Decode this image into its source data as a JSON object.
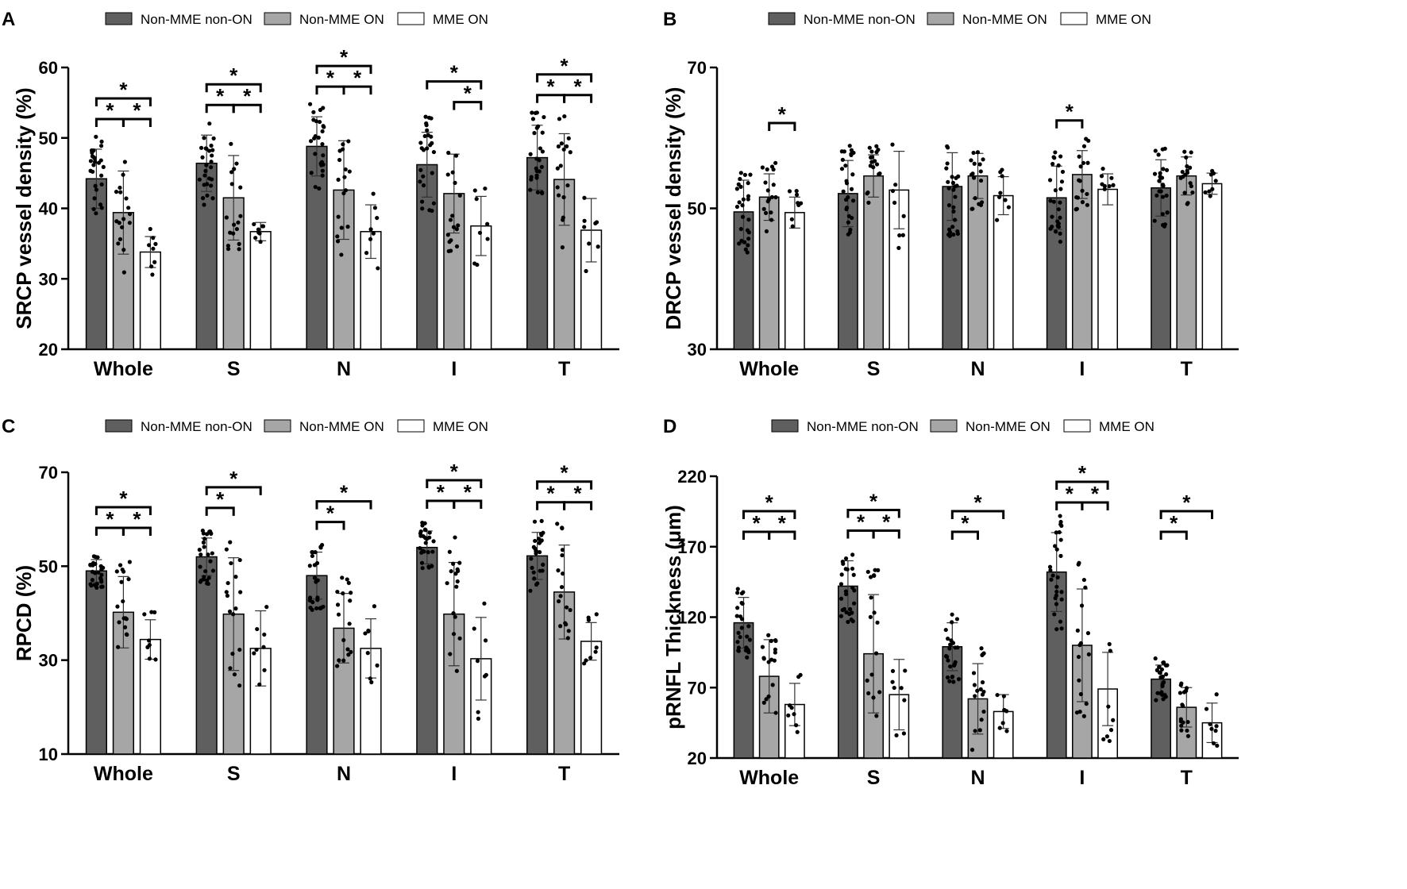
{
  "colors": {
    "dark": "#5f5f5f",
    "gray": "#a6a6a6",
    "white": "#ffffff"
  },
  "legend": [
    "Non-MME non-ON",
    "Non-MME ON",
    "MME ON"
  ],
  "chart_data": [
    {
      "panel": "A",
      "type": "bar",
      "ylabel": "SRCP vessel density (%)",
      "ylim": [
        20,
        60
      ],
      "yticks": [
        20,
        30,
        40,
        50,
        60
      ],
      "categories": [
        "Whole",
        "S",
        "N",
        "I",
        "T"
      ],
      "series": [
        {
          "name": "Non-MME non-ON",
          "values": [
            44.2,
            46.4,
            48.8,
            46.2,
            47.2
          ],
          "sd": [
            4.2,
            4.0,
            4.2,
            4.6,
            4.6
          ]
        },
        {
          "name": "Non-MME ON",
          "values": [
            39.4,
            41.5,
            42.6,
            42.1,
            44.1
          ],
          "sd": [
            5.9,
            6.0,
            7.0,
            5.6,
            6.5
          ]
        },
        {
          "name": "MME ON",
          "values": [
            33.8,
            36.7,
            36.7,
            37.5,
            36.9
          ],
          "sd": [
            2.2,
            1.3,
            3.8,
            4.2,
            4.5
          ]
        }
      ],
      "significance": [
        {
          "category": "Whole",
          "pairs": [
            [
              0,
              1
            ],
            [
              1,
              2
            ],
            [
              0,
              2
            ]
          ],
          "label": "*"
        },
        {
          "category": "S",
          "pairs": [
            [
              0,
              1
            ],
            [
              1,
              2
            ],
            [
              0,
              2
            ]
          ],
          "label": "*"
        },
        {
          "category": "N",
          "pairs": [
            [
              0,
              1
            ],
            [
              1,
              2
            ],
            [
              0,
              2
            ]
          ],
          "label": "*"
        },
        {
          "category": "I",
          "pairs": [
            [
              1,
              2
            ],
            [
              0,
              2
            ]
          ],
          "label": "*"
        },
        {
          "category": "T",
          "pairs": [
            [
              0,
              1
            ],
            [
              1,
              2
            ],
            [
              0,
              2
            ]
          ],
          "label": "*"
        }
      ]
    },
    {
      "panel": "B",
      "type": "bar",
      "ylabel": "DRCP vessel density (%)",
      "ylim": [
        30,
        70
      ],
      "yticks": [
        30,
        50,
        70
      ],
      "categories": [
        "Whole",
        "S",
        "N",
        "I",
        "T"
      ],
      "series": [
        {
          "name": "Non-MME non-ON",
          "values": [
            49.5,
            52.1,
            53.1,
            51.5,
            52.9
          ],
          "sd": [
            4.5,
            4.7,
            4.8,
            4.5,
            4.0
          ]
        },
        {
          "name": "Non-MME ON",
          "values": [
            51.6,
            54.6,
            54.6,
            54.8,
            54.6
          ],
          "sd": [
            3.3,
            3.0,
            3.2,
            3.4,
            2.7
          ]
        },
        {
          "name": "MME ON",
          "values": [
            49.4,
            52.6,
            51.8,
            52.7,
            53.5
          ],
          "sd": [
            2.2,
            5.5,
            2.7,
            2.2,
            1.5
          ]
        }
      ],
      "significance": [
        {
          "category": "Whole",
          "pairs": [
            [
              1,
              2
            ]
          ],
          "label": "*"
        },
        {
          "category": "I",
          "pairs": [
            [
              0,
              1
            ]
          ],
          "label": "*"
        }
      ]
    },
    {
      "panel": "C",
      "type": "bar",
      "ylabel": "RPCD (%)",
      "ylim": [
        10,
        70
      ],
      "yticks": [
        10,
        30,
        50,
        70
      ],
      "categories": [
        "Whole",
        "S",
        "N",
        "I",
        "T"
      ],
      "series": [
        {
          "name": "Non-MME non-ON",
          "values": [
            49.0,
            52.0,
            48.0,
            54.0,
            52.2
          ],
          "sd": [
            2.4,
            4.0,
            5.0,
            3.5,
            5.0
          ]
        },
        {
          "name": "Non-MME ON",
          "values": [
            40.2,
            39.8,
            36.8,
            39.8,
            44.5
          ],
          "sd": [
            7.6,
            12.0,
            7.4,
            11.0,
            10.0
          ]
        },
        {
          "name": "MME ON",
          "values": [
            34.4,
            32.5,
            32.5,
            30.3,
            34.0
          ],
          "sd": [
            4.2,
            8.0,
            6.3,
            8.8,
            4.0
          ]
        }
      ],
      "significance": [
        {
          "category": "Whole",
          "pairs": [
            [
              0,
              1
            ],
            [
              1,
              2
            ],
            [
              0,
              2
            ]
          ],
          "label": "*"
        },
        {
          "category": "S",
          "pairs": [
            [
              0,
              1
            ],
            [
              0,
              2
            ]
          ],
          "label": "*"
        },
        {
          "category": "N",
          "pairs": [
            [
              0,
              1
            ],
            [
              0,
              2
            ]
          ],
          "label": "*"
        },
        {
          "category": "I",
          "pairs": [
            [
              0,
              1
            ],
            [
              1,
              2
            ],
            [
              0,
              2
            ]
          ],
          "label": "*"
        },
        {
          "category": "T",
          "pairs": [
            [
              0,
              1
            ],
            [
              1,
              2
            ],
            [
              0,
              2
            ]
          ],
          "label": "*"
        }
      ]
    },
    {
      "panel": "D",
      "type": "bar",
      "ylabel": "pRNFL Thickness (μm)",
      "ylim": [
        20,
        220
      ],
      "yticks": [
        20,
        70,
        120,
        170,
        220
      ],
      "categories": [
        "Whole",
        "S",
        "N",
        "I",
        "T"
      ],
      "series": [
        {
          "name": "Non-MME non-ON",
          "values": [
            116,
            142,
            99,
            152,
            76
          ],
          "sd": [
            18,
            18,
            17,
            28,
            10
          ]
        },
        {
          "name": "Non-MME ON",
          "values": [
            78,
            94,
            62,
            100,
            56
          ],
          "sd": [
            26,
            42,
            25,
            40,
            14
          ]
        },
        {
          "name": "MME ON",
          "values": [
            58,
            65,
            53,
            69,
            45
          ],
          "sd": [
            15,
            25,
            12,
            26,
            14
          ]
        }
      ],
      "significance": [
        {
          "category": "Whole",
          "pairs": [
            [
              0,
              1
            ],
            [
              1,
              2
            ],
            [
              0,
              2
            ]
          ],
          "label": "*"
        },
        {
          "category": "S",
          "pairs": [
            [
              0,
              1
            ],
            [
              1,
              2
            ],
            [
              0,
              2
            ]
          ],
          "label": "*"
        },
        {
          "category": "N",
          "pairs": [
            [
              0,
              1
            ],
            [
              0,
              2
            ]
          ],
          "label": "*"
        },
        {
          "category": "I",
          "pairs": [
            [
              0,
              1
            ],
            [
              1,
              2
            ],
            [
              0,
              2
            ]
          ],
          "label": "*"
        },
        {
          "category": "T",
          "pairs": [
            [
              0,
              1
            ],
            [
              0,
              2
            ]
          ],
          "label": "*"
        }
      ]
    }
  ]
}
